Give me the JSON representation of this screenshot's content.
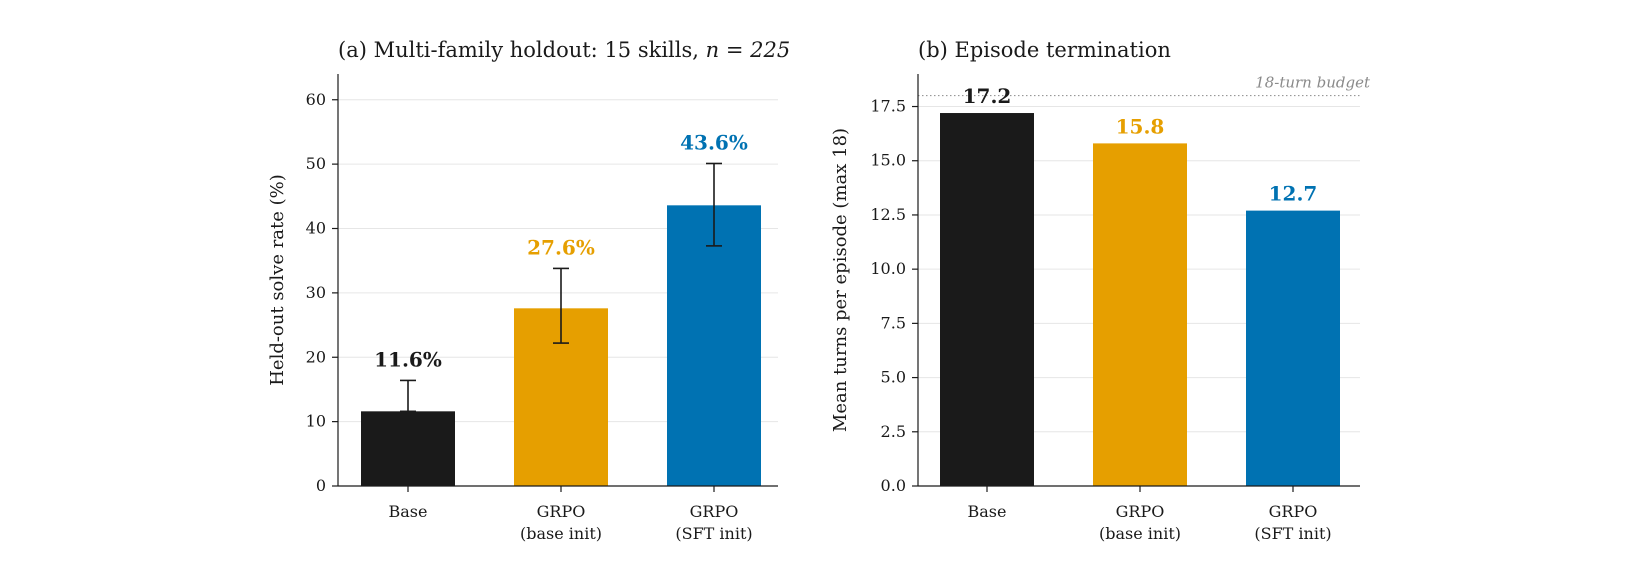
{
  "chart_data": [
    {
      "type": "bar",
      "title_prefix": "(a) Multi-family holdout: 15 skills, ",
      "title_math": "n = 225",
      "xlabel": "",
      "ylabel": "Held-out solve rate (%)",
      "ylim": [
        0,
        64
      ],
      "yticks": [
        0,
        10,
        20,
        30,
        40,
        50,
        60
      ],
      "ytick_labels": [
        "0",
        "10",
        "20",
        "30",
        "40",
        "50",
        "60"
      ],
      "grid": true,
      "categories": [
        {
          "line1": "Base",
          "line2": ""
        },
        {
          "line1": "GRPO",
          "line2": "(base init)"
        },
        {
          "line1": "GRPO",
          "line2": "(SFT init)"
        }
      ],
      "values": [
        11.6,
        27.6,
        43.6
      ],
      "value_labels": [
        "11.6%",
        "27.6%",
        "43.6%"
      ],
      "error_low": [
        11.6,
        22.2,
        37.3
      ],
      "error_high": [
        16.4,
        33.8,
        50.1
      ],
      "colors": [
        "#1a1a1a",
        "#e69f00",
        "#0072b2"
      ]
    },
    {
      "type": "bar",
      "title": "(b) Episode termination",
      "xlabel": "",
      "ylabel": "Mean turns per episode (max 18)",
      "ylim": [
        0,
        19
      ],
      "yticks": [
        0,
        2.5,
        5,
        7.5,
        10,
        12.5,
        15,
        17.5
      ],
      "ytick_labels": [
        "0.0",
        "2.5",
        "5.0",
        "7.5",
        "10.0",
        "12.5",
        "15.0",
        "17.5"
      ],
      "grid": true,
      "categories": [
        {
          "line1": "Base",
          "line2": ""
        },
        {
          "line1": "GRPO",
          "line2": "(base init)"
        },
        {
          "line1": "GRPO",
          "line2": "(SFT init)"
        }
      ],
      "values": [
        17.2,
        15.8,
        12.7
      ],
      "value_labels": [
        "17.2",
        "15.8",
        "12.7"
      ],
      "colors": [
        "#1a1a1a",
        "#e69f00",
        "#0072b2"
      ],
      "reference_line": {
        "value": 18,
        "label": "18-turn budget"
      }
    }
  ]
}
